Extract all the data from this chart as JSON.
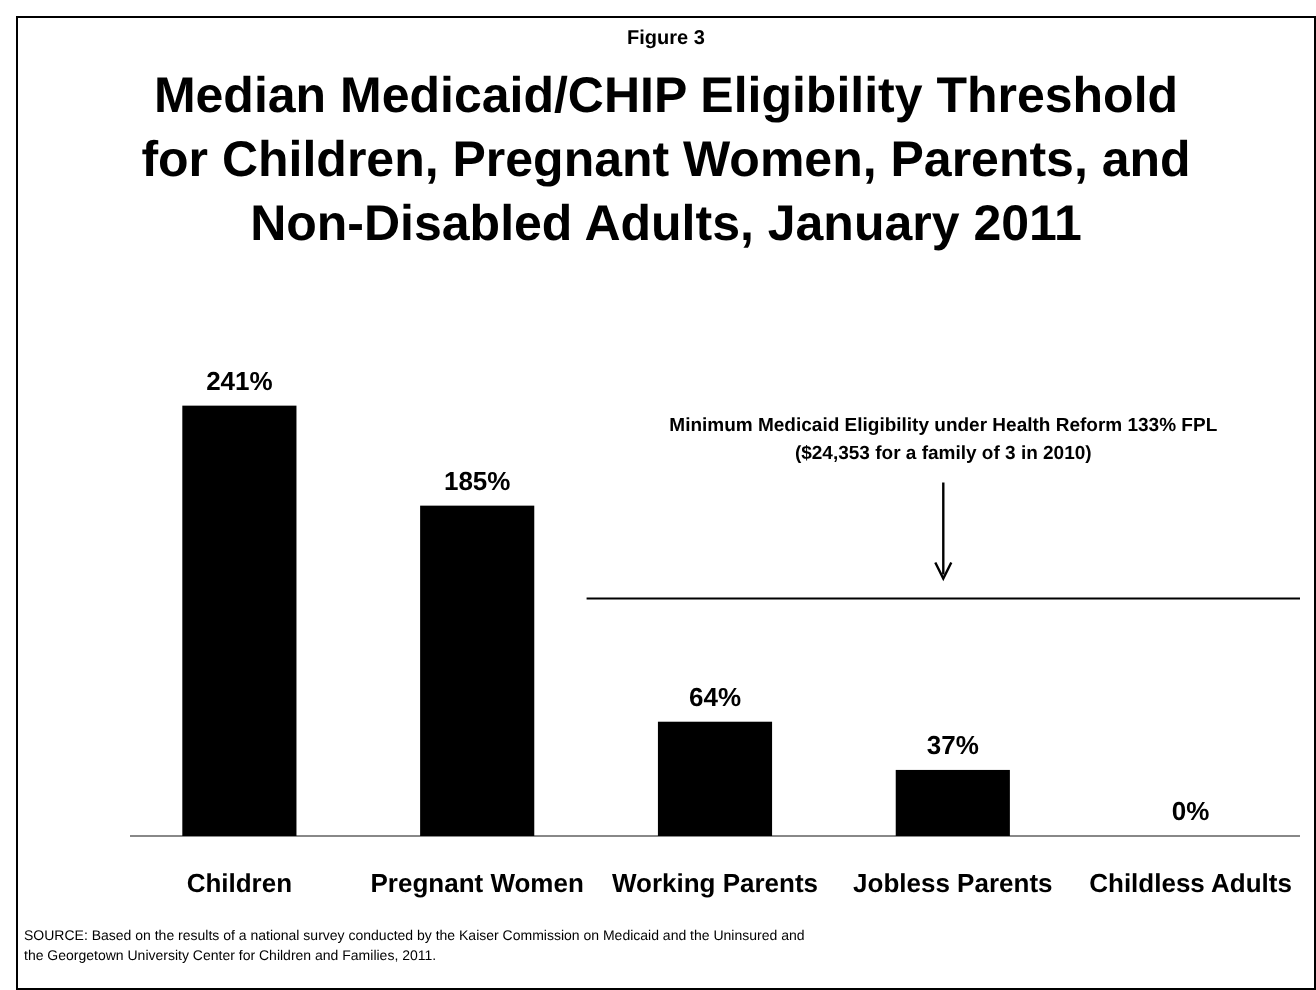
{
  "chart_data": {
    "type": "bar",
    "title": "Median Medicaid/CHIP Eligibility Threshold for Children, Pregnant Women, Parents, and Non-Disabled Adults, January 2011",
    "categories": [
      "Children",
      "Pregnant Women",
      "Working Parents",
      "Jobless Parents",
      "Childless Adults"
    ],
    "values": [
      241,
      185,
      64,
      37,
      0
    ],
    "value_labels": [
      "241%",
      "185%",
      "64%",
      "37%",
      "0%"
    ],
    "color": "#000000",
    "ref_lines": [
      {
        "axis": "y",
        "value": 133,
        "label": "Minimum Medicaid Eligibility under Health Reform 133% FPL",
        "color": "#000000"
      }
    ],
    "annotations": [
      "Figure 3",
      "($24,353 for a family of 3 in 2010)",
      "SOURCE: Based on the results of a national survey conducted by the Kaiser Commission on Medicaid and the Uninsured and the Georgetown University Center for Children and Families, 2011."
    ]
  }
}
